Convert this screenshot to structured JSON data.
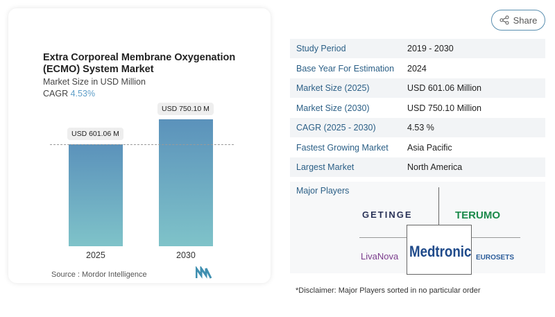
{
  "chart": {
    "title": "Extra Corporeal Membrane Oxygenation (ECMO) System Market",
    "subtitle": "Market Size in USD Million",
    "cagr_label": "CAGR",
    "cagr_value": "4.53%",
    "source": "Source :  Mordor Intelligence"
  },
  "chart_data": {
    "type": "bar",
    "categories": [
      "2025",
      "2030"
    ],
    "values": [
      601.06,
      750.1
    ],
    "data_labels": [
      "USD 601.06 M",
      "USD 750.10 M"
    ],
    "title": "Extra Corporeal Membrane Oxygenation (ECMO) System Market",
    "ylabel": "Market Size in USD Million",
    "colors": [
      "#5b92bb",
      "#7fc3c9"
    ]
  },
  "share": {
    "label": "Share",
    "icon": "share-icon"
  },
  "table": [
    {
      "k": "Study Period",
      "v": "2019 - 2030"
    },
    {
      "k": "Base Year For Estimation",
      "v": "2024"
    },
    {
      "k": "Market Size (2025)",
      "v": "USD 601.06 Million"
    },
    {
      "k": "Market Size (2030)",
      "v": "USD 750.10 Million"
    },
    {
      "k": "CAGR (2025 - 2030)",
      "v": "4.53 %"
    },
    {
      "k": "Fastest Growing Market",
      "v": "Asia Pacific"
    },
    {
      "k": "Largest Market",
      "v": "North America"
    }
  ],
  "players": {
    "heading": "Major Players",
    "logos": [
      "GETINGE",
      "TERUMO",
      "LivaNova",
      "Medtronic",
      "EUROSETS"
    ]
  },
  "disclaimer": "*Disclaimer: Major Players sorted in no particular order"
}
